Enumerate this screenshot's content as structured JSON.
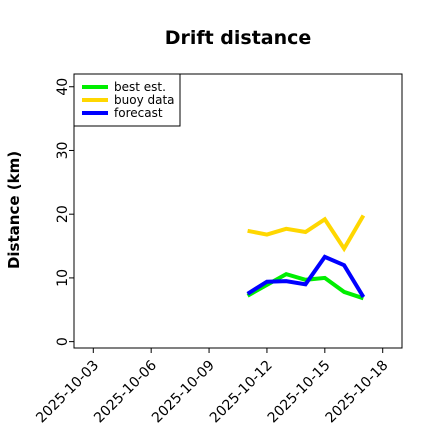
{
  "chart_data": {
    "type": "line",
    "title": "Drift distance",
    "xlabel": "",
    "ylabel": "Distance (km)",
    "ylim": [
      -1,
      42
    ],
    "xlim": [
      "2025-10-02",
      "2025-10-19"
    ],
    "y_ticks": [
      0,
      10,
      20,
      30,
      40
    ],
    "x_ticks": [
      "2025-10-03",
      "2025-10-06",
      "2025-10-09",
      "2025-10-12",
      "2025-10-15",
      "2025-10-18"
    ],
    "highlight_tick": "2025-10-09",
    "highlight_color": "#228B22",
    "grid": false,
    "legend": "top-left",
    "series": [
      {
        "name": "best est.",
        "color": "#00ee00",
        "x": [
          "2025-10-11",
          "2025-10-12",
          "2025-10-13",
          "2025-10-14",
          "2025-10-15",
          "2025-10-16",
          "2025-10-17"
        ],
        "values": [
          7.2,
          8.9,
          10.6,
          9.7,
          10.0,
          7.8,
          6.8
        ]
      },
      {
        "name": "buoy data",
        "color": "#ffd700",
        "x": [
          "2025-10-11",
          "2025-10-12",
          "2025-10-13",
          "2025-10-14",
          "2025-10-15",
          "2025-10-16",
          "2025-10-17"
        ],
        "values": [
          17.4,
          16.8,
          17.7,
          17.2,
          19.2,
          14.6,
          19.8
        ]
      },
      {
        "name": "forecast",
        "color": "#0000ff",
        "x": [
          "2025-10-11",
          "2025-10-12",
          "2025-10-13",
          "2025-10-14",
          "2025-10-15",
          "2025-10-16",
          "2025-10-17"
        ],
        "values": [
          7.5,
          9.4,
          9.5,
          9.0,
          13.3,
          12.0,
          7.0
        ]
      }
    ]
  }
}
